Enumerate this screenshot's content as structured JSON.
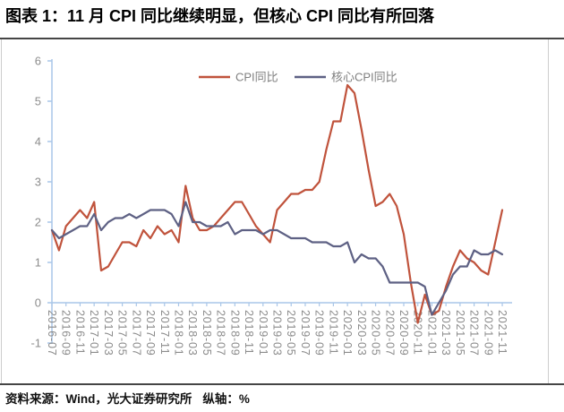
{
  "page": {
    "title": "图表 1：11 月 CPI 同比继续明显，但核心 CPI 同比有所回落",
    "footer": {
      "source": "资料来源：Wind，光大证券研究所",
      "axis_note": "纵轴：%"
    }
  },
  "colors": {
    "cpi_line": "#C0533C",
    "core_cpi_line": "#5E6184",
    "axis_line": "#A9C6E8",
    "tick_label": "#8C8C8C",
    "legend_text": "#7F7F7F",
    "rule": "#454545",
    "frame_side": "#CCCCCC",
    "background": "#FFFFFF"
  },
  "chart_data": {
    "type": "line",
    "title": "",
    "xlabel": "",
    "ylabel": "%",
    "ylim": [
      -1,
      6
    ],
    "yticks": [
      6,
      5,
      4,
      3,
      2,
      1,
      0,
      -1
    ],
    "grid": false,
    "legend_position": "top-center",
    "x_tick_every": 2,
    "x": [
      "2016-07",
      "2016-08",
      "2016-09",
      "2016-10",
      "2016-11",
      "2016-12",
      "2017-01",
      "2017-02",
      "2017-03",
      "2017-04",
      "2017-05",
      "2017-06",
      "2017-07",
      "2017-08",
      "2017-09",
      "2017-10",
      "2017-11",
      "2017-12",
      "2018-01",
      "2018-02",
      "2018-03",
      "2018-04",
      "2018-05",
      "2018-06",
      "2018-07",
      "2018-08",
      "2018-09",
      "2018-10",
      "2018-11",
      "2018-12",
      "2019-01",
      "2019-02",
      "2019-03",
      "2019-04",
      "2019-05",
      "2019-06",
      "2019-07",
      "2019-08",
      "2019-09",
      "2019-10",
      "2019-11",
      "2019-12",
      "2020-01",
      "2020-02",
      "2020-03",
      "2020-04",
      "2020-05",
      "2020-06",
      "2020-07",
      "2020-08",
      "2020-09",
      "2020-10",
      "2020-11",
      "2020-12",
      "2021-01",
      "2021-02",
      "2021-03",
      "2021-04",
      "2021-05",
      "2021-06",
      "2021-07",
      "2021-08",
      "2021-09",
      "2021-10",
      "2021-11"
    ],
    "series": [
      {
        "name": "CPI同比",
        "color": "#C0533C",
        "values": [
          1.8,
          1.3,
          1.9,
          2.1,
          2.3,
          2.1,
          2.5,
          0.8,
          0.9,
          1.2,
          1.5,
          1.5,
          1.4,
          1.8,
          1.6,
          1.9,
          1.7,
          1.8,
          1.5,
          2.9,
          2.1,
          1.8,
          1.8,
          1.9,
          2.1,
          2.3,
          2.5,
          2.5,
          2.2,
          1.9,
          1.7,
          1.5,
          2.3,
          2.5,
          2.7,
          2.7,
          2.8,
          2.8,
          3.0,
          3.8,
          4.5,
          4.5,
          5.4,
          5.2,
          4.3,
          3.3,
          2.4,
          2.5,
          2.7,
          2.4,
          1.7,
          0.5,
          -0.5,
          0.2,
          -0.3,
          -0.2,
          0.4,
          0.9,
          1.3,
          1.1,
          1.0,
          0.8,
          0.7,
          1.5,
          2.3
        ]
      },
      {
        "name": "核心CPI同比",
        "color": "#5E6184",
        "values": [
          1.8,
          1.6,
          1.7,
          1.8,
          1.9,
          1.9,
          2.2,
          1.8,
          2.0,
          2.1,
          2.1,
          2.2,
          2.1,
          2.2,
          2.3,
          2.3,
          2.3,
          2.2,
          1.9,
          2.5,
          2.0,
          2.0,
          1.9,
          1.9,
          1.9,
          2.0,
          1.7,
          1.8,
          1.8,
          1.8,
          1.7,
          1.8,
          1.8,
          1.7,
          1.6,
          1.6,
          1.6,
          1.5,
          1.5,
          1.5,
          1.4,
          1.4,
          1.5,
          1.0,
          1.2,
          1.1,
          1.1,
          0.9,
          0.5,
          0.5,
          0.5,
          0.5,
          0.5,
          0.4,
          -0.3,
          0.0,
          0.3,
          0.7,
          0.9,
          0.9,
          1.3,
          1.2,
          1.2,
          1.3,
          1.2
        ]
      }
    ]
  }
}
